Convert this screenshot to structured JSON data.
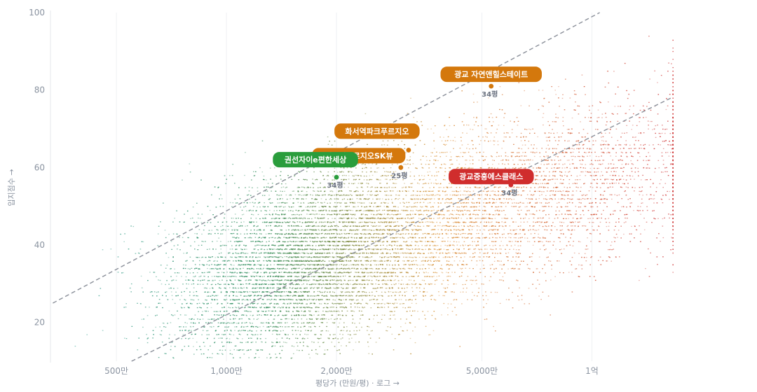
{
  "chart_data": {
    "type": "scatter",
    "title": "",
    "xlabel": "평당가 (만원/평) · 로그 →",
    "ylabel": "입지점수 →",
    "x_scale": "log",
    "x_unit": "만원/평",
    "xlim": [
      330,
      16800
    ],
    "ylim": [
      10,
      100
    ],
    "x_ticks": [
      {
        "value": 500,
        "label": "500만"
      },
      {
        "value": 1000,
        "label": "1,000만"
      },
      {
        "value": 2000,
        "label": "2,000만"
      },
      {
        "value": 5000,
        "label": "5,000만"
      },
      {
        "value": 10000,
        "label": "1억"
      }
    ],
    "y_ticks": [
      {
        "value": 20,
        "label": "20"
      },
      {
        "value": 40,
        "label": "40"
      },
      {
        "value": 60,
        "label": "60"
      },
      {
        "value": 80,
        "label": "80"
      },
      {
        "value": 100,
        "label": "100"
      }
    ],
    "grid": "vertical",
    "trend_lines": [
      {
        "points": [
          [
            335,
            25
          ],
          [
            10500,
            100
          ]
        ]
      },
      {
        "points": [
          [
            550,
            10
          ],
          [
            16500,
            78
          ]
        ]
      }
    ],
    "color_scale": [
      "#2a9d8f",
      "#2e8b57",
      "#d98e2f",
      "#d03a3a"
    ],
    "highlights": [
      {
        "name": "광교 자연앤힐스테이트",
        "size": "34평",
        "x": 5300,
        "y": 81,
        "color": "#d4780c"
      },
      {
        "name": "화서역파크푸르지오",
        "size": "",
        "x": 3150,
        "y": 64.5,
        "color": "#d4780c"
      },
      {
        "name": "매교역푸르지오SK뷰",
        "size": "25평",
        "x": 3000,
        "y": 60,
        "color": "#d4780c"
      },
      {
        "name": "권선자이e편한세상",
        "size": "34평",
        "x": 2000,
        "y": 57.5,
        "color": "#2a9d3c"
      },
      {
        "name": "광교중흥에스클래스",
        "size": "34평",
        "x": 6000,
        "y": 55.5,
        "color": "#d02d2d"
      }
    ]
  }
}
